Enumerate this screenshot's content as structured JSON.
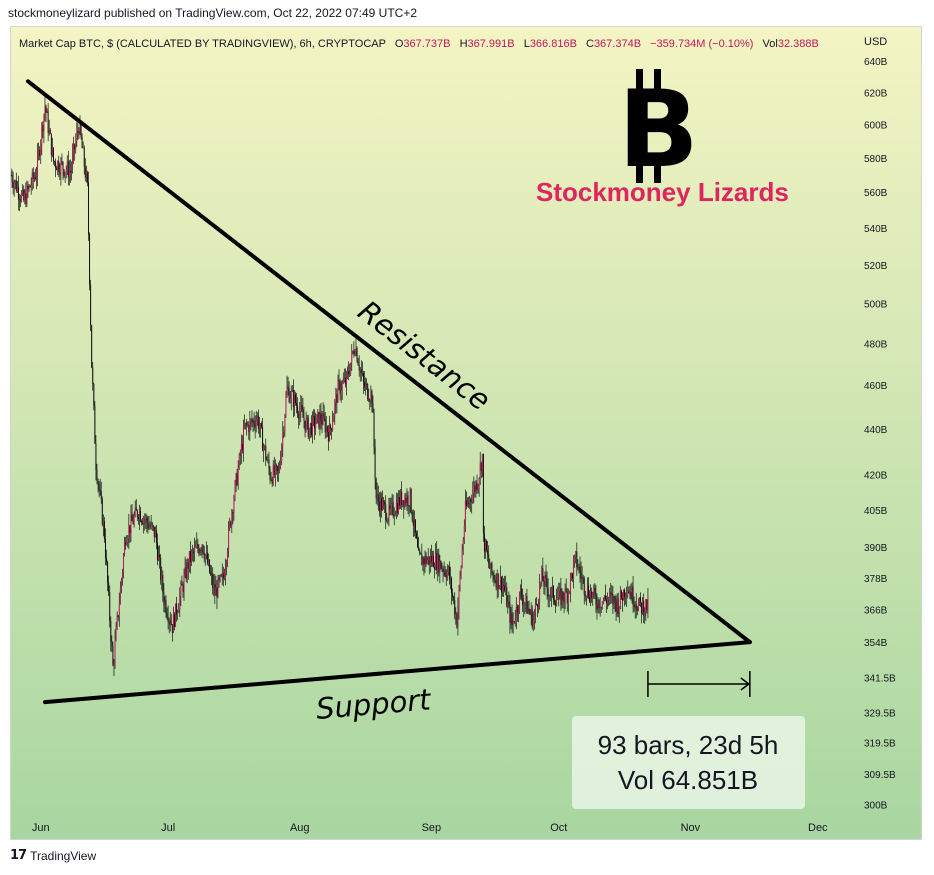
{
  "attribution": "stockmoneylizard published on TradingView.com, Oct 22, 2022 07:49 UTC+2",
  "footer": {
    "logo_text": "TradingView",
    "logo_icon": "tradingview-logo-icon"
  },
  "colors": {
    "gradient_top": "#f4f4c4",
    "gradient_bottom": "#a8d6a0",
    "candle": "#c2185b",
    "wick": "#111111",
    "accent": "#e0245e",
    "line": "#000000"
  },
  "chart_data": {
    "type": "candlestick",
    "header": {
      "symbol": "Market Cap BTC, $ (CALCULATED BY TRADINGVIEW), 6h, CRYPTOCAP",
      "o_label": "O",
      "o_value": "367.737B",
      "h_label": "H",
      "h_value": "367.991B",
      "l_label": "L",
      "l_value": "366.816B",
      "c_label": "C",
      "c_value": "367.374B",
      "change": "−359.734M (−0.10%)",
      "vol_label": "Vol",
      "vol_value": "32.388B"
    },
    "currency": "USD",
    "y_scale": "log",
    "ylim": [
      295,
      648
    ],
    "y_ticks": [
      {
        "label": "640B",
        "value": 640
      },
      {
        "label": "620B",
        "value": 620
      },
      {
        "label": "600B",
        "value": 600
      },
      {
        "label": "580B",
        "value": 580
      },
      {
        "label": "560B",
        "value": 560
      },
      {
        "label": "540B",
        "value": 540
      },
      {
        "label": "520B",
        "value": 520
      },
      {
        "label": "500B",
        "value": 500
      },
      {
        "label": "480B",
        "value": 480
      },
      {
        "label": "460B",
        "value": 460
      },
      {
        "label": "440B",
        "value": 440
      },
      {
        "label": "420B",
        "value": 420
      },
      {
        "label": "405B",
        "value": 405
      },
      {
        "label": "390B",
        "value": 390
      },
      {
        "label": "378B",
        "value": 378
      },
      {
        "label": "366B",
        "value": 366
      },
      {
        "label": "354B",
        "value": 354
      },
      {
        "label": "341.5B",
        "value": 341.5
      },
      {
        "label": "329.5B",
        "value": 329.5
      },
      {
        "label": "319.5B",
        "value": 319.5
      },
      {
        "label": "309.5B",
        "value": 309.5
      },
      {
        "label": "300B",
        "value": 300
      }
    ],
    "xlim": [
      "2022-05-25",
      "2022-12-10"
    ],
    "x_ticks": [
      {
        "label": "Jun",
        "date": "2022-06-01"
      },
      {
        "label": "Jul",
        "date": "2022-07-01"
      },
      {
        "label": "Aug",
        "date": "2022-08-01"
      },
      {
        "label": "Sep",
        "date": "2022-09-01"
      },
      {
        "label": "Oct",
        "date": "2022-10-01"
      },
      {
        "label": "Nov",
        "date": "2022-11-01"
      },
      {
        "label": "Dec",
        "date": "2022-12-01"
      }
    ],
    "price_path": [
      [
        "2022-05-25",
        570
      ],
      [
        "2022-05-28",
        555
      ],
      [
        "2022-05-31",
        572
      ],
      [
        "2022-06-02",
        612
      ],
      [
        "2022-06-04",
        578
      ],
      [
        "2022-06-08",
        572
      ],
      [
        "2022-06-10",
        600
      ],
      [
        "2022-06-12",
        562
      ],
      [
        "2022-06-13",
        470
      ],
      [
        "2022-06-14",
        425
      ],
      [
        "2022-06-16",
        395
      ],
      [
        "2022-06-18",
        345
      ],
      [
        "2022-06-21",
        395
      ],
      [
        "2022-06-24",
        405
      ],
      [
        "2022-06-28",
        395
      ],
      [
        "2022-06-30",
        370
      ],
      [
        "2022-07-02",
        360
      ],
      [
        "2022-07-06",
        385
      ],
      [
        "2022-07-09",
        392
      ],
      [
        "2022-07-12",
        372
      ],
      [
        "2022-07-14",
        378
      ],
      [
        "2022-07-16",
        405
      ],
      [
        "2022-07-19",
        440
      ],
      [
        "2022-07-22",
        445
      ],
      [
        "2022-07-25",
        420
      ],
      [
        "2022-07-27",
        420
      ],
      [
        "2022-07-29",
        458
      ],
      [
        "2022-07-31",
        452
      ],
      [
        "2022-08-03",
        440
      ],
      [
        "2022-08-06",
        445
      ],
      [
        "2022-08-08",
        438
      ],
      [
        "2022-08-10",
        458
      ],
      [
        "2022-08-12",
        462
      ],
      [
        "2022-08-14",
        480
      ],
      [
        "2022-08-16",
        460
      ],
      [
        "2022-08-18",
        455
      ],
      [
        "2022-08-19",
        410
      ],
      [
        "2022-08-22",
        403
      ],
      [
        "2022-08-25",
        410
      ],
      [
        "2022-08-27",
        410
      ],
      [
        "2022-08-29",
        385
      ],
      [
        "2022-09-02",
        385
      ],
      [
        "2022-09-05",
        380
      ],
      [
        "2022-09-07",
        362
      ],
      [
        "2022-09-09",
        405
      ],
      [
        "2022-09-12",
        418
      ],
      [
        "2022-09-13",
        428
      ],
      [
        "2022-09-13",
        395
      ],
      [
        "2022-09-15",
        380
      ],
      [
        "2022-09-18",
        375
      ],
      [
        "2022-09-20",
        360
      ],
      [
        "2022-09-22",
        372
      ],
      [
        "2022-09-25",
        362
      ],
      [
        "2022-09-27",
        378
      ],
      [
        "2022-09-29",
        372
      ],
      [
        "2022-10-01",
        370
      ],
      [
        "2022-10-03",
        372
      ],
      [
        "2022-10-05",
        385
      ],
      [
        "2022-10-07",
        375
      ],
      [
        "2022-10-10",
        369
      ],
      [
        "2022-10-13",
        370
      ],
      [
        "2022-10-15",
        368
      ],
      [
        "2022-10-17",
        375
      ],
      [
        "2022-10-20",
        367
      ],
      [
        "2022-10-22",
        367.4
      ]
    ],
    "resistance_line": {
      "start": [
        "2022-05-29",
        627
      ],
      "end": [
        "2022-11-15",
        354
      ]
    },
    "support_line": {
      "start": [
        "2022-06-02",
        333
      ],
      "end": [
        "2022-11-15",
        354
      ]
    },
    "annotations": {
      "resistance": "Resistance",
      "support": "Support",
      "brand": "Stockmoney Lizards",
      "brand_icon": "bitcoin-symbol-icon",
      "bars_line1": "93 bars, 23d 5h",
      "bars_line2": "Vol 64.851B",
      "measure_range": [
        "2022-10-22",
        "2022-11-15"
      ]
    }
  }
}
